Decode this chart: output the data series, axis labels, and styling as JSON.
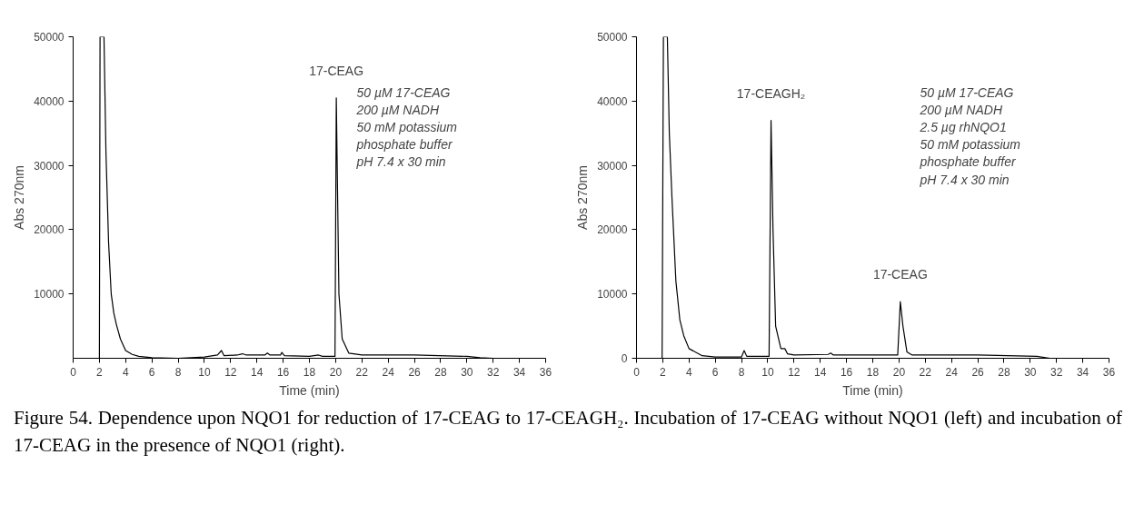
{
  "chart_data": [
    {
      "type": "line",
      "xlabel": "Time (min)",
      "ylabel": "Abs 270nm",
      "xlim": [
        0,
        36
      ],
      "ylim": [
        0,
        50000
      ],
      "xticks": [
        0,
        2,
        4,
        6,
        8,
        10,
        12,
        14,
        16,
        18,
        20,
        22,
        24,
        26,
        28,
        30,
        32,
        34,
        36
      ],
      "yticks": [
        10000,
        20000,
        30000,
        40000,
        50000
      ],
      "grid": false,
      "marker": "none",
      "line_style": "solid",
      "series": [
        {
          "color": "#000000",
          "x": [
            0,
            1.9,
            2.0,
            2.05,
            2.3,
            2.35,
            2.5,
            2.7,
            2.9,
            3.1,
            3.3,
            3.6,
            4,
            4.5,
            5,
            6,
            8,
            10,
            11,
            11.3,
            11.5,
            12.5,
            12.9,
            13.2,
            14.6,
            14.8,
            15,
            15.8,
            15.9,
            16.1,
            18,
            18.7,
            19,
            19.95,
            20.05,
            20.15,
            20.25,
            20.5,
            21,
            22,
            26,
            30,
            31,
            32,
            36
          ],
          "values": [
            0,
            0,
            0,
            50000,
            50000,
            50000,
            32000,
            18000,
            10000,
            7000,
            5200,
            3000,
            1200,
            600,
            300,
            100,
            0,
            200,
            500,
            1200,
            400,
            500,
            700,
            500,
            500,
            800,
            500,
            500,
            900,
            400,
            300,
            500,
            300,
            300,
            40500,
            25000,
            10000,
            3000,
            800,
            500,
            500,
            300,
            100,
            0,
            0
          ]
        }
      ],
      "annotations": [
        {
          "text": "17-CEAG",
          "x": 20.05,
          "y": 40500
        },
        "50 µM 17-CEAG\n200 µM NADH\n50 mM potassium\nphosphate buffer\npH 7.4 x 30 min"
      ]
    },
    {
      "type": "line",
      "xlabel": "Time (min)",
      "ylabel": "Abs 270nm",
      "xlim": [
        0,
        36
      ],
      "ylim": [
        0,
        50000
      ],
      "xticks": [
        0,
        2,
        4,
        6,
        8,
        10,
        12,
        14,
        16,
        18,
        20,
        22,
        24,
        26,
        28,
        30,
        32,
        34,
        36
      ],
      "yticks": [
        0,
        10000,
        20000,
        30000,
        40000,
        50000
      ],
      "grid": false,
      "marker": "none",
      "line_style": "solid",
      "series": [
        {
          "color": "#000000",
          "x": [
            0,
            1.95,
            2.05,
            2.3,
            2.35,
            2.5,
            2.7,
            3.0,
            3.3,
            3.6,
            4,
            5,
            6,
            8,
            8.2,
            8.4,
            10.1,
            10.25,
            10.4,
            10.6,
            11,
            11.3,
            11.5,
            12,
            14.6,
            14.8,
            15,
            19.9,
            20.1,
            20.3,
            20.6,
            21,
            26,
            30.5,
            31.5,
            36
          ],
          "values": [
            0,
            0,
            50000,
            50000,
            50000,
            35000,
            25000,
            12000,
            6000,
            3500,
            1500,
            400,
            200,
            200,
            1200,
            300,
            300,
            37000,
            20000,
            5000,
            1500,
            1500,
            700,
            500,
            600,
            800,
            500,
            500,
            8800,
            5000,
            1000,
            500,
            500,
            300,
            0,
            0
          ]
        }
      ],
      "annotations": [
        {
          "text": "17-CEAGH₂",
          "x": 10.25,
          "y": 37000
        },
        {
          "text": "17-CEAG",
          "x": 20.1,
          "y": 8800
        },
        "50 µM 17-CEAG\n200 µM NADH\n2.5 µg rhNQO1\n50 mM potassium\nphosphate buffer\npH 7.4 x 30 min",
        "Figure 54.  Dependence upon NQO1 for reduction of 17-CEAG to 17-CEAGH₂.  Incubation of 17-CEAG without NQO1 (left) and incubation of 17-CEAG in the presence of NQO1 (right)."
      ]
    }
  ]
}
